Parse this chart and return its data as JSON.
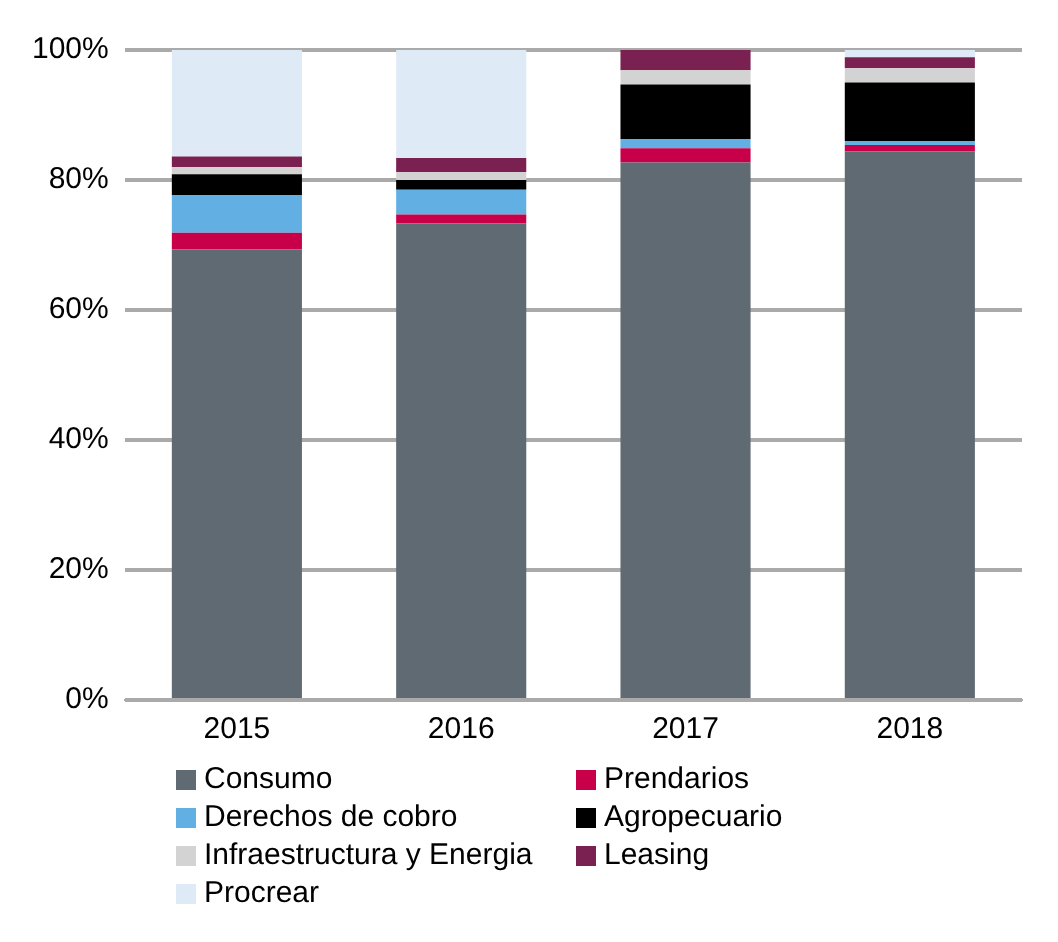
{
  "chart_data": {
    "type": "bar",
    "stacked": true,
    "categories": [
      "2015",
      "2016",
      "2017",
      "2018"
    ],
    "series": [
      {
        "name": "Consumo",
        "color": "#5f6a72",
        "values": [
          69.3,
          73.3,
          82.7,
          84.4
        ]
      },
      {
        "name": "Prendarios",
        "color": "#c8004a",
        "values": [
          2.6,
          1.4,
          2.2,
          1.0
        ]
      },
      {
        "name": "Derechos de cobro",
        "color": "#62b0e3",
        "values": [
          5.8,
          3.8,
          1.4,
          0.6
        ]
      },
      {
        "name": "Agropecuario",
        "color": "#000000",
        "values": [
          3.2,
          1.5,
          8.4,
          9.0
        ]
      },
      {
        "name": "Infraestructura y Energia",
        "color": "#d3d3d3",
        "values": [
          1.1,
          1.2,
          2.2,
          2.2
        ]
      },
      {
        "name": "Leasing",
        "color": "#7b2152",
        "values": [
          1.6,
          2.2,
          3.1,
          1.7
        ]
      },
      {
        "name": "Procrear",
        "color": "#deebf7",
        "values": [
          16.4,
          16.6,
          0,
          1.1
        ]
      }
    ],
    "ylim": [
      0,
      100
    ],
    "yticks": [
      {
        "value": 0,
        "label": "0%"
      },
      {
        "value": 20,
        "label": "20%"
      },
      {
        "value": 40,
        "label": "40%"
      },
      {
        "value": 60,
        "label": "60%"
      },
      {
        "value": 80,
        "label": "80%"
      },
      {
        "value": 100,
        "label": "100%"
      }
    ],
    "grid": "y",
    "legend": "bottom"
  }
}
